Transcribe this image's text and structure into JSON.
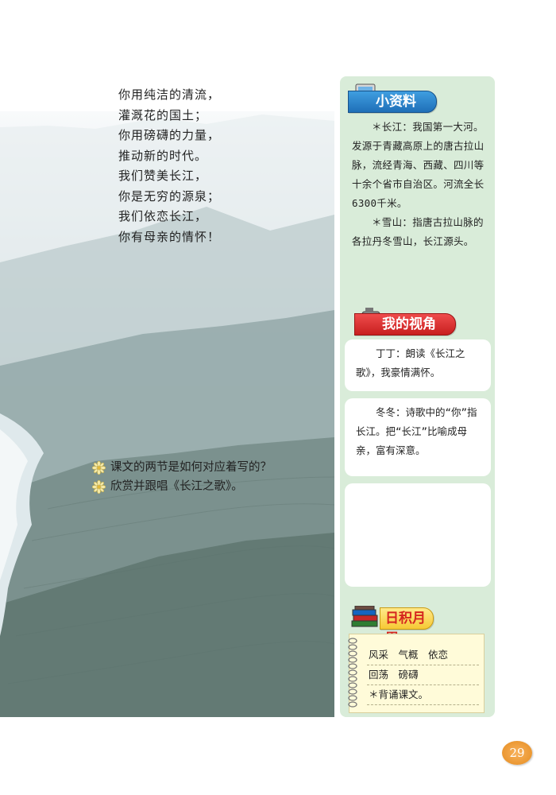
{
  "poem": {
    "lines": [
      "你用纯洁的清流，",
      "灌溉花的国土；",
      "你用磅礴的力量，",
      "推动新的时代。",
      "我们赞美长江，",
      "你是无穷的源泉；",
      "我们依恋长江，",
      "你有母亲的情怀！"
    ]
  },
  "questions": [
    "课文的两节是如何对应着写的？",
    "欣赏并跟唱《长江之歌》。"
  ],
  "sidebar": {
    "info": {
      "title": "小资料",
      "icon": "computer-icon",
      "paragraphs": [
        "＊长江：我国第一大河。发源于青藏高原上的唐古拉山脉，流经青海、西藏、四川等十余个省市自治区。河流全长6300千米。",
        "＊雪山：指唐古拉山脉的各拉丹冬雪山，长江源头。"
      ]
    },
    "perspective": {
      "title": "我的视角",
      "icon": "camera-icon",
      "comments": [
        "丁丁：朗读《长江之歌》，我豪情满怀。",
        "冬冬：诗歌中的“你”指长江。把“长江”比喻成母亲，富有深意。",
        ""
      ]
    },
    "accumulate": {
      "title": "日积月累",
      "icon": "books-icon",
      "lines": [
        "风采　气概　依恋",
        "回荡　磅礴",
        "＊背诵课文。"
      ]
    }
  },
  "page_number": "29",
  "colors": {
    "sidebar_bg": "#d9ecd9",
    "info_banner": "#2b86d0",
    "view_banner": "#de3535",
    "accumulate_banner": "#f6c934",
    "page_badge": "#f0a040"
  }
}
